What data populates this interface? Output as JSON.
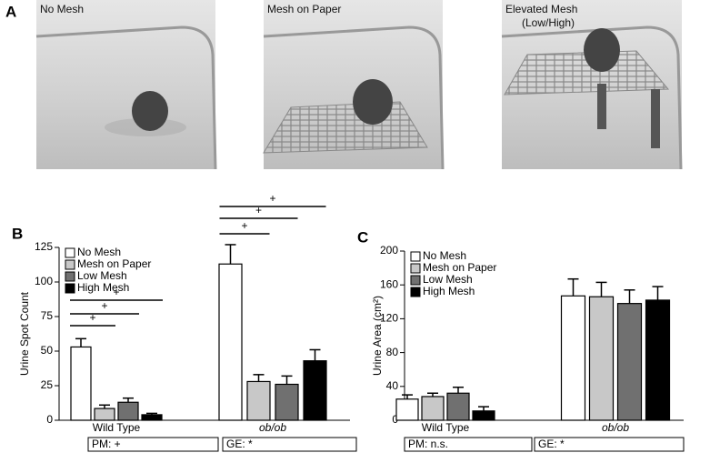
{
  "panel_a": {
    "label": "A",
    "scenes": [
      "No Mesh",
      "Mesh on Paper",
      "Elevated Mesh",
      "(Low/High)"
    ]
  },
  "chart_data": [
    {
      "type": "bar",
      "panel": "B",
      "ylabel": "Urine Spot Count",
      "categories": [
        "Wild Type",
        "ob/ob"
      ],
      "series": [
        {
          "name": "No Mesh",
          "color": "#ffffff",
          "values": [
            53,
            113
          ],
          "errors": [
            6,
            14
          ]
        },
        {
          "name": "Mesh on Paper",
          "color": "#c8c8c8",
          "values": [
            8.5,
            28
          ],
          "errors": [
            2.5,
            5
          ]
        },
        {
          "name": "Low Mesh",
          "color": "#707070",
          "values": [
            13,
            26
          ],
          "errors": [
            3,
            6
          ]
        },
        {
          "name": "High Mesh",
          "color": "#000000",
          "values": [
            4,
            43
          ],
          "errors": [
            1,
            8
          ]
        }
      ],
      "ylim": [
        0,
        125
      ],
      "yticks": [
        0,
        25,
        50,
        75,
        100,
        125
      ],
      "significance": [
        [
          "+",
          "+",
          "+"
        ],
        [
          "+",
          "+",
          "+"
        ]
      ],
      "stats": [
        "PM: +",
        "GE: *"
      ],
      "legend": "upper left"
    },
    {
      "type": "bar",
      "panel": "C",
      "ylabel": "Urine Area (cm²)",
      "categories": [
        "Wild Type",
        "ob/ob"
      ],
      "series": [
        {
          "name": "No Mesh",
          "color": "#ffffff",
          "values": [
            25,
            147
          ],
          "errors": [
            5,
            20
          ]
        },
        {
          "name": "Mesh on Paper",
          "color": "#c8c8c8",
          "values": [
            28,
            146
          ],
          "errors": [
            4,
            17
          ]
        },
        {
          "name": "Low Mesh",
          "color": "#707070",
          "values": [
            32,
            138
          ],
          "errors": [
            7,
            16
          ]
        },
        {
          "name": "High Mesh",
          "color": "#000000",
          "values": [
            11,
            142
          ],
          "errors": [
            5,
            16
          ]
        }
      ],
      "ylim": [
        0,
        200
      ],
      "yticks": [
        0,
        40,
        80,
        120,
        160,
        200
      ],
      "stats": [
        "PM: n.s.",
        "GE: *"
      ],
      "legend": "upper left"
    }
  ]
}
